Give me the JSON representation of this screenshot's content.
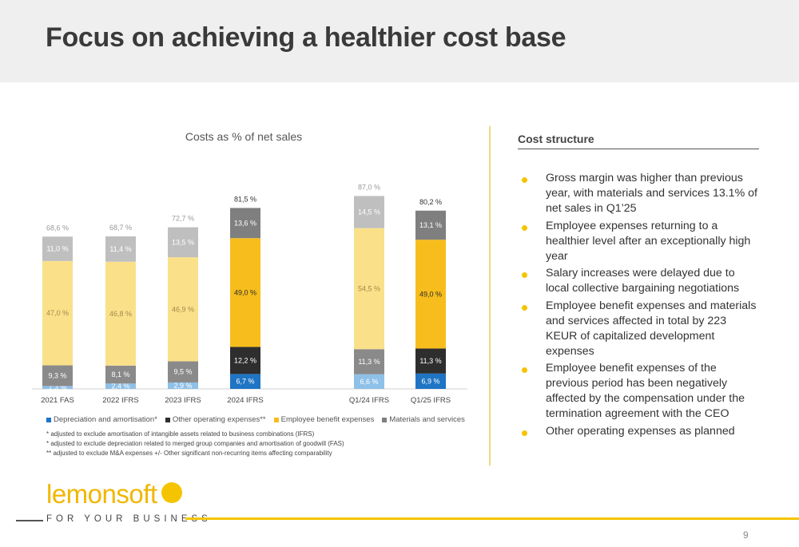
{
  "title": "Focus on achieving a healthier cost base",
  "chart_data": {
    "type": "bar",
    "stacked": true,
    "title": "Costs as % of net sales",
    "categories": [
      "2021 FAS",
      "2022 IFRS",
      "2023 IFRS",
      "2024 IFRS",
      "Q1/24 IFRS",
      "Q1/25 IFRS"
    ],
    "series": [
      {
        "name": "Depreciation and amortisation*",
        "values": [
          1.3,
          2.4,
          2.9,
          6.7,
          6.6,
          6.9
        ],
        "labels": [
          "1,3 %",
          "2,4 %",
          "2,9 %",
          "6,7 %",
          "6,6 %",
          "6,9 %"
        ]
      },
      {
        "name": "Other operating expenses**",
        "values": [
          9.3,
          8.1,
          9.5,
          12.2,
          11.3,
          11.3
        ],
        "labels": [
          "9,3 %",
          "8,1 %",
          "9,5 %",
          "12,2 %",
          "11,3 %",
          "11,3 %"
        ]
      },
      {
        "name": "Employee benefit expenses",
        "values": [
          47.0,
          46.8,
          46.9,
          49.0,
          54.5,
          49.0
        ],
        "labels": [
          "47,0 %",
          "46,8 %",
          "46,9 %",
          "49,0 %",
          "54,5 %",
          "49,0 %"
        ]
      },
      {
        "name": "Materials and services",
        "values": [
          11.0,
          11.4,
          13.5,
          13.6,
          14.5,
          13.1
        ],
        "labels": [
          "11,0 %",
          "11,4 %",
          "13,5 %",
          "13,6 %",
          "14,5 %",
          "13,1 %"
        ]
      }
    ],
    "totals": [
      68.6,
      68.7,
      72.7,
      81.5,
      87.0,
      80.2
    ],
    "total_labels": [
      "68,6 %",
      "68,7 %",
      "72,7 %",
      "81,5 %",
      "87,0 %",
      "80,2 %"
    ],
    "highlighted": [
      false,
      false,
      false,
      true,
      false,
      true
    ],
    "colors": {
      "full": [
        "#1f74c4",
        "#2e2e2e",
        "#f7bd1d",
        "#7f7f7f"
      ],
      "faded": [
        "#8ec0e8",
        "#8a8a8a",
        "#fbe08a",
        "#bfbfbf"
      ]
    },
    "ylim": [
      0,
      90
    ],
    "grid": false,
    "legend_position": "bottom"
  },
  "legend": [
    {
      "label": "Depreciation and amortisation*",
      "color": "#1f74c4"
    },
    {
      "label": "Other operating expenses**",
      "color": "#2e2e2e"
    },
    {
      "label": "Employee benefit expenses",
      "color": "#f7bd1d"
    },
    {
      "label": "Materials and services",
      "color": "#7f7f7f"
    }
  ],
  "footnotes": [
    "* adjusted to exclude amortisation of intangible assets related to business combinations (IFRS)",
    "* adjusted to exclude depreciation related to merged group companies and amortisation of goodwill (FAS)",
    "** adjusted to exclude M&A expenses +/- Other significant non-recurring items affecting comparability"
  ],
  "cost_structure": {
    "heading": "Cost structure",
    "bullets": [
      "Gross margin was higher than previous year, with materials and services 13.1% of net sales in Q1’25",
      "Employee expenses returning to a healthier level after an exceptionally high year",
      "Salary increases were delayed due to local collective bargaining negotiations",
      "Employee benefit expenses and materials and services affected in total by 223 KEUR of capitalized development expenses",
      "Employee benefit expenses of the previous period has been negatively affected by the compensation under the termination agreement with the CEO",
      "Other operating expenses as planned"
    ],
    "bullet_color": "#f5c400"
  },
  "brand": {
    "logo_text": "lemonsoft",
    "tagline": "FOR YOUR BUSINESS",
    "accent": "#f5c400"
  },
  "page_number": "9"
}
